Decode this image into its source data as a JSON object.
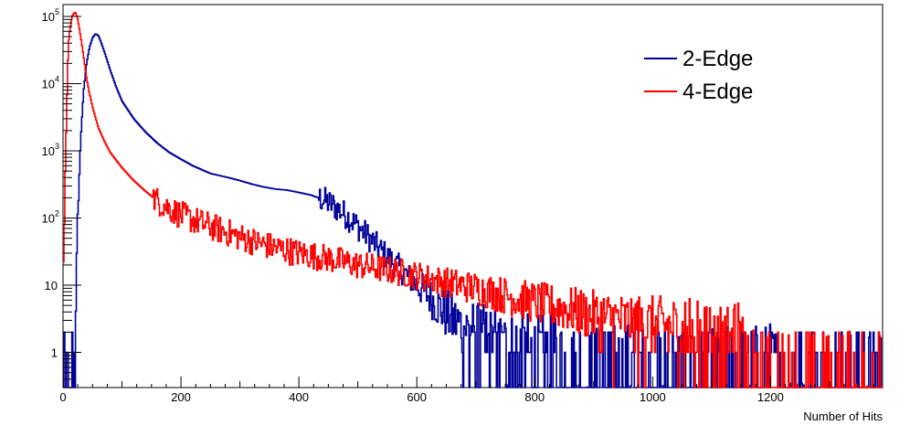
{
  "colors": {
    "series_2edge": "#000099",
    "series_4edge": "#ff0000",
    "axis": "#000000",
    "background": "#ffffff"
  },
  "chart_data": {
    "type": "line",
    "subtype": "step-histogram",
    "title": "",
    "xlabel": "Number of Hits",
    "ylabel": "",
    "xlim": [
      0,
      1390
    ],
    "ylim": [
      0.3,
      150000
    ],
    "y_scale": "log",
    "grid": false,
    "legend_placement": "top-right",
    "x_ticks": [
      {
        "value": 0,
        "label": "0"
      },
      {
        "value": 200,
        "label": "200"
      },
      {
        "value": 400,
        "label": "400"
      },
      {
        "value": 600,
        "label": "600"
      },
      {
        "value": 800,
        "label": "800"
      },
      {
        "value": 1000,
        "label": "1000"
      },
      {
        "value": 1200,
        "label": "1200"
      }
    ],
    "y_ticks": [
      {
        "value": 1,
        "label": "1",
        "base": "1",
        "exp": ""
      },
      {
        "value": 10,
        "label": "10",
        "base": "10",
        "exp": ""
      },
      {
        "value": 100,
        "label": "10^2",
        "base": "10",
        "exp": "2"
      },
      {
        "value": 1000,
        "label": "10^3",
        "base": "10",
        "exp": "3"
      },
      {
        "value": 10000,
        "label": "10^4",
        "base": "10",
        "exp": "4"
      },
      {
        "value": 100000,
        "label": "10^5",
        "base": "10",
        "exp": "5"
      }
    ],
    "series": [
      {
        "name": "2-Edge",
        "color": "#000099",
        "x": [
          0,
          5,
          10,
          15,
          18,
          20,
          25,
          30,
          35,
          40,
          45,
          50,
          55,
          60,
          65,
          70,
          75,
          80,
          90,
          100,
          120,
          140,
          160,
          180,
          200,
          220,
          250,
          280,
          300,
          320,
          340,
          360,
          380,
          400,
          420,
          440,
          460,
          480,
          500,
          520,
          540,
          560,
          580,
          600,
          620,
          640,
          660,
          680,
          700,
          720,
          740,
          760,
          780,
          800,
          820,
          840,
          860,
          880,
          900,
          950,
          1000,
          1050,
          1100,
          1150,
          1200,
          1250,
          1300,
          1350,
          1380
        ],
        "y": [
          0.3,
          0.3,
          0.3,
          0.3,
          0.3,
          1,
          100,
          1500,
          8000,
          20000,
          35000,
          48000,
          55000,
          52000,
          40000,
          30000,
          22000,
          16000,
          9000,
          5500,
          3000,
          1900,
          1300,
          950,
          750,
          600,
          460,
          400,
          360,
          320,
          290,
          270,
          260,
          240,
          220,
          190,
          150,
          110,
          75,
          50,
          32,
          22,
          15,
          10,
          7,
          4.5,
          3,
          2.5,
          1.8,
          1.4,
          1.2,
          1,
          1,
          0.8,
          0.8,
          0.6,
          0.5,
          0.4,
          0.4,
          0.5,
          0.4,
          0.4,
          0.4,
          0.4,
          0.5,
          0.3,
          0.3,
          0.3,
          0.3
        ]
      },
      {
        "name": "4-Edge",
        "color": "#ff0000",
        "x": [
          0,
          2,
          5,
          8,
          10,
          15,
          20,
          22,
          25,
          30,
          35,
          40,
          45,
          50,
          60,
          70,
          80,
          100,
          120,
          140,
          160,
          180,
          200,
          250,
          300,
          350,
          400,
          450,
          500,
          550,
          600,
          650,
          700,
          750,
          800,
          850,
          900,
          950,
          1000,
          1050,
          1100,
          1150,
          1160,
          1200,
          1300,
          1390
        ],
        "y": [
          15,
          100,
          1500,
          20000,
          50000,
          100000,
          115000,
          110000,
          90000,
          50000,
          25000,
          12000,
          7000,
          4500,
          2200,
          1400,
          950,
          560,
          360,
          250,
          180,
          140,
          110,
          75,
          52,
          38,
          30,
          25,
          20,
          17,
          14,
          11,
          9,
          7,
          5.5,
          4.5,
          3.5,
          3,
          2.6,
          2.3,
          2,
          1.8,
          0.3,
          0.3,
          0.3,
          0.3
        ]
      }
    ]
  }
}
